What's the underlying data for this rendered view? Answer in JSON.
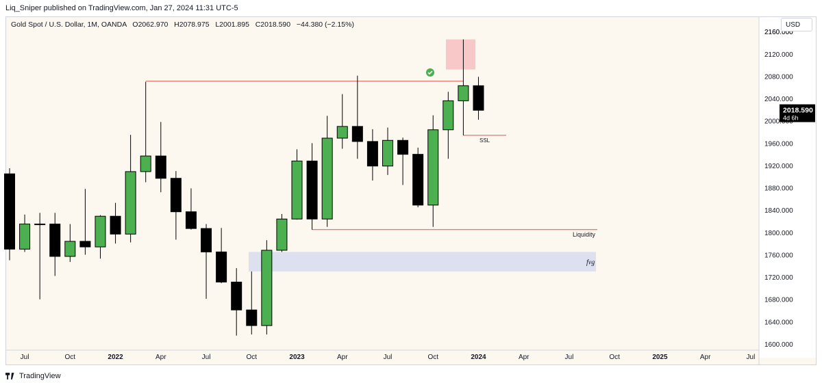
{
  "header": {
    "published_line": "Liq_Sniper published on TradingView.com, Jan 27, 2024 11:31 UTC-5"
  },
  "legend": {
    "symbol": "Gold Spot / U.S. Dollar, 1M, OANDA",
    "open": "O2062.970",
    "high": "H2078.975",
    "low": "L2001.895",
    "close": "C2018.590",
    "change": "−44.380 (−2.15%)"
  },
  "currency_label": "USD",
  "price_tag": {
    "price": "2018.590",
    "countdown": "4d 6h"
  },
  "footer": {
    "brand": "TradingView"
  },
  "colors": {
    "up": "#4caf50",
    "down": "#000000",
    "background": "#fcf8f0",
    "level_line": "#d9534f",
    "fvg_zone": "#dde0ee",
    "top_zone": "#f8c8c8",
    "check_badge": "#4caf50"
  },
  "chart_data": {
    "type": "candlestick",
    "interval": "1M",
    "y_axis": {
      "ylim": [
        1580,
        2162
      ],
      "ticks": [
        1600,
        1640,
        1680,
        1720,
        1760,
        1800,
        1840,
        1880,
        1920,
        1960,
        2000,
        2040,
        2080,
        2120,
        2160
      ],
      "tick_labels": [
        "1600.000",
        "1640.000",
        "1680.000",
        "1720.000",
        "1760.000",
        "1800.000",
        "1840.000",
        "1880.000",
        "1920.000",
        "1960.000",
        "2000.000",
        "2040.000",
        "2080.000",
        "2120.000",
        "2160.000"
      ]
    },
    "x_axis": {
      "labels": [
        {
          "text": "Jul",
          "month": 1,
          "bold": false
        },
        {
          "text": "Oct",
          "month": 4,
          "bold": false
        },
        {
          "text": "2022",
          "month": 7,
          "bold": true
        },
        {
          "text": "Apr",
          "month": 10,
          "bold": false
        },
        {
          "text": "Jul",
          "month": 13,
          "bold": false
        },
        {
          "text": "Oct",
          "month": 16,
          "bold": false
        },
        {
          "text": "2023",
          "month": 19,
          "bold": true
        },
        {
          "text": "Apr",
          "month": 22,
          "bold": false
        },
        {
          "text": "Jul",
          "month": 25,
          "bold": false
        },
        {
          "text": "Oct",
          "month": 28,
          "bold": false
        },
        {
          "text": "2024",
          "month": 31,
          "bold": true
        },
        {
          "text": "Apr",
          "month": 34,
          "bold": false
        },
        {
          "text": "Jul",
          "month": 37,
          "bold": false
        },
        {
          "text": "Oct",
          "month": 40,
          "bold": false
        },
        {
          "text": "2025",
          "month": 43,
          "bold": true
        },
        {
          "text": "Apr",
          "month": 46,
          "bold": false
        },
        {
          "text": "Jul",
          "month": 49,
          "bold": false
        }
      ]
    },
    "candles": [
      {
        "date": "2021-06",
        "o": 1905,
        "h": 1915,
        "l": 1750,
        "c": 1770
      },
      {
        "date": "2021-07",
        "o": 1770,
        "h": 1832,
        "l": 1765,
        "c": 1815
      },
      {
        "date": "2021-08",
        "o": 1815,
        "h": 1835,
        "l": 1680,
        "c": 1815
      },
      {
        "date": "2021-09",
        "o": 1815,
        "h": 1835,
        "l": 1722,
        "c": 1757
      },
      {
        "date": "2021-10",
        "o": 1757,
        "h": 1815,
        "l": 1747,
        "c": 1784
      },
      {
        "date": "2021-11",
        "o": 1784,
        "h": 1878,
        "l": 1760,
        "c": 1774
      },
      {
        "date": "2021-12",
        "o": 1774,
        "h": 1831,
        "l": 1753,
        "c": 1829
      },
      {
        "date": "2022-01",
        "o": 1829,
        "h": 1853,
        "l": 1780,
        "c": 1797
      },
      {
        "date": "2022-02",
        "o": 1797,
        "h": 1975,
        "l": 1782,
        "c": 1909
      },
      {
        "date": "2022-03",
        "o": 1909,
        "h": 2070,
        "l": 1890,
        "c": 1937
      },
      {
        "date": "2022-04",
        "o": 1937,
        "h": 1998,
        "l": 1872,
        "c": 1897
      },
      {
        "date": "2022-05",
        "o": 1897,
        "h": 1910,
        "l": 1787,
        "c": 1837
      },
      {
        "date": "2022-06",
        "o": 1837,
        "h": 1879,
        "l": 1805,
        "c": 1807
      },
      {
        "date": "2022-07",
        "o": 1807,
        "h": 1815,
        "l": 1681,
        "c": 1765
      },
      {
        "date": "2022-08",
        "o": 1765,
        "h": 1808,
        "l": 1709,
        "c": 1711
      },
      {
        "date": "2022-09",
        "o": 1711,
        "h": 1736,
        "l": 1615,
        "c": 1661
      },
      {
        "date": "2022-10",
        "o": 1661,
        "h": 1730,
        "l": 1617,
        "c": 1633
      },
      {
        "date": "2022-11",
        "o": 1633,
        "h": 1786,
        "l": 1617,
        "c": 1768
      },
      {
        "date": "2022-12",
        "o": 1768,
        "h": 1833,
        "l": 1765,
        "c": 1824
      },
      {
        "date": "2023-01",
        "o": 1824,
        "h": 1949,
        "l": 1823,
        "c": 1928
      },
      {
        "date": "2023-02",
        "o": 1928,
        "h": 1960,
        "l": 1805,
        "c": 1824
      },
      {
        "date": "2023-03",
        "o": 1824,
        "h": 2009,
        "l": 1810,
        "c": 1969
      },
      {
        "date": "2023-04",
        "o": 1969,
        "h": 2048,
        "l": 1950,
        "c": 1990
      },
      {
        "date": "2023-05",
        "o": 1990,
        "h": 2081,
        "l": 1932,
        "c": 1963
      },
      {
        "date": "2023-06",
        "o": 1963,
        "h": 1985,
        "l": 1893,
        "c": 1919
      },
      {
        "date": "2023-07",
        "o": 1919,
        "h": 1988,
        "l": 1903,
        "c": 1965
      },
      {
        "date": "2023-08",
        "o": 1965,
        "h": 1970,
        "l": 1885,
        "c": 1940
      },
      {
        "date": "2023-09",
        "o": 1940,
        "h": 1952,
        "l": 1845,
        "c": 1849
      },
      {
        "date": "2023-10",
        "o": 1849,
        "h": 2010,
        "l": 1810,
        "c": 1984
      },
      {
        "date": "2023-11",
        "o": 1984,
        "h": 2052,
        "l": 1932,
        "c": 2036
      },
      {
        "date": "2023-12",
        "o": 2036,
        "h": 2146,
        "l": 1974,
        "c": 2063
      },
      {
        "date": "2024-01",
        "o": 2063,
        "h": 2079,
        "l": 2002,
        "c": 2019
      }
    ],
    "annotations": [
      {
        "type": "hline",
        "price": 2071,
        "from": "2022-03",
        "to": "2023-12",
        "label": ""
      },
      {
        "type": "hline",
        "price": 1974,
        "from": "2023-12",
        "to": "2024-02",
        "label": "SSL"
      },
      {
        "type": "hline",
        "price": 1805,
        "from": "2023-02",
        "to": "2024-10",
        "label": "Liquidity"
      },
      {
        "type": "zone",
        "from": "2022-11",
        "to": "2024-10",
        "top": 1765,
        "bottom": 1730,
        "label": "fvg"
      },
      {
        "type": "zone",
        "from": "2023-12",
        "to": "2024-01",
        "top": 2146,
        "bottom": 2092,
        "label": ""
      },
      {
        "type": "marker",
        "date": "2023-11",
        "price": 2094,
        "icon": "check-icon"
      }
    ]
  }
}
